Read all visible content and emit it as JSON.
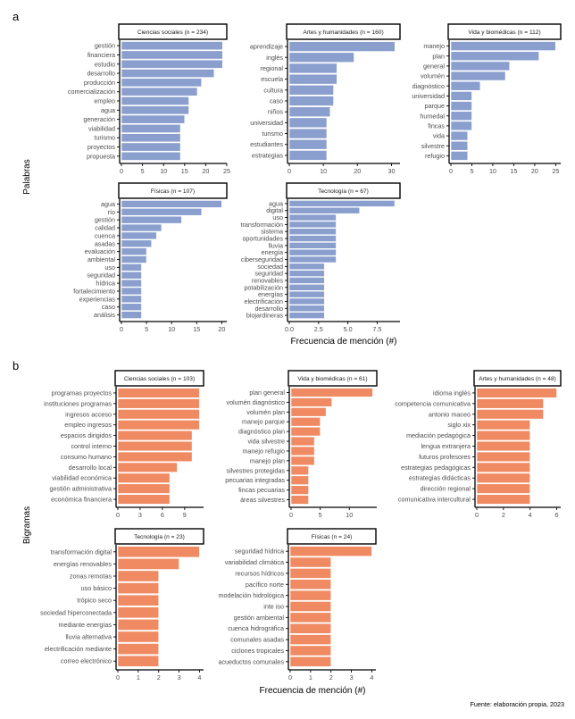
{
  "figure": {
    "tag_a": "a",
    "tag_b": "b",
    "ylabel_a": "Palabras",
    "ylabel_b": "Bigramas",
    "xlabel": "Frecuencia de mención (#)",
    "source_note": "Fuente: elaboración propia, 2023",
    "colors": {
      "words": "#8a9fce",
      "bigrams": "#ef8a62",
      "bar_edge": "#ffffff",
      "strip_border": "#000000",
      "axis": "#000000"
    }
  },
  "chart_data": [
    {
      "type": "bar",
      "orientation": "horizontal",
      "group": "a",
      "series_name": "Palabras",
      "title": "Ciencias sociales (n = 234)",
      "categories": [
        "gestión",
        "financiera",
        "estudio",
        "desarrollo",
        "producción",
        "comercialización",
        "empleo",
        "agua",
        "generación",
        "viabilidad",
        "turismo",
        "proyectos",
        "propuesta"
      ],
      "values": [
        24,
        24,
        24,
        22,
        19,
        18,
        16,
        16,
        15,
        14,
        14,
        14,
        14
      ],
      "xlim": [
        0,
        25
      ],
      "xticks": [
        0,
        5,
        10,
        15,
        20,
        25
      ],
      "xtick_labels": [
        "0",
        "5",
        "10",
        "15",
        "20",
        "25"
      ],
      "xlabel": "",
      "ylabel": "Palabras",
      "grid": false
    },
    {
      "type": "bar",
      "orientation": "horizontal",
      "group": "a",
      "series_name": "Palabras",
      "title": "Artes y humanidades (n = 160)",
      "categories": [
        "aprendizaje",
        "inglés",
        "regional",
        "escuela",
        "cultura",
        "caso",
        "niños",
        "universidad",
        "turismo",
        "estudiantes",
        "estrategias"
      ],
      "values": [
        31,
        19,
        14,
        14,
        13,
        13,
        12,
        11,
        11,
        11,
        11
      ],
      "xlim": [
        0,
        32.5
      ],
      "xticks": [
        0,
        10,
        20,
        30
      ],
      "xtick_labels": [
        "0",
        "10",
        "20",
        "30"
      ],
      "xlabel": "",
      "ylabel": "",
      "grid": false
    },
    {
      "type": "bar",
      "orientation": "horizontal",
      "group": "a",
      "series_name": "Palabras",
      "title": "Vida y biomédicas (n = 112)",
      "categories": [
        "manejo",
        "plan",
        "general",
        "volumén",
        "diagnóstico",
        "universidad",
        "parque",
        "humedal",
        "fincas",
        "vida",
        "silvestre",
        "refugio"
      ],
      "values": [
        25,
        21,
        14,
        13,
        7,
        5,
        5,
        5,
        5,
        4,
        4,
        4
      ],
      "xlim": [
        0,
        26.2
      ],
      "xticks": [
        0,
        5,
        10,
        15,
        20,
        25
      ],
      "xtick_labels": [
        "0",
        "5",
        "10",
        "15",
        "20",
        "25"
      ],
      "xlabel": "",
      "ylabel": "",
      "grid": false
    },
    {
      "type": "bar",
      "orientation": "horizontal",
      "group": "a",
      "series_name": "Palabras",
      "title": "Físicas (n = 107)",
      "categories": [
        "agua",
        "río",
        "gestión",
        "calidad",
        "cuenca",
        "asadas",
        "evaluación",
        "ambiental",
        "uso",
        "seguridad",
        "hídrica",
        "fortalecimiento",
        "experiencias",
        "caso",
        "análisis"
      ],
      "values": [
        20,
        16,
        12,
        8,
        7,
        6,
        5,
        5,
        4,
        4,
        4,
        4,
        4,
        4,
        4
      ],
      "xlim": [
        0,
        21
      ],
      "xticks": [
        0,
        5,
        10,
        15,
        20
      ],
      "xtick_labels": [
        "0",
        "5",
        "10",
        "15",
        "20"
      ],
      "xlabel": "",
      "ylabel": "",
      "grid": false
    },
    {
      "type": "bar",
      "orientation": "horizontal",
      "group": "a",
      "series_name": "Palabras",
      "title": "Tecnología (n = 67)",
      "categories": [
        "agua",
        "digital",
        "uso",
        "transformación",
        "sistema",
        "oportunidades",
        "lluvia",
        "energía",
        "ciberseguridad",
        "sociedad",
        "seguridad",
        "renovables",
        "potabilización",
        "energías",
        "electrificación",
        "desarrollo",
        "biojardineras"
      ],
      "values": [
        9,
        6,
        4,
        4,
        4,
        4,
        4,
        4,
        4,
        3,
        3,
        3,
        3,
        3,
        3,
        3,
        3
      ],
      "xlim": [
        0,
        9.45
      ],
      "xticks": [
        0,
        2.5,
        5,
        7.5
      ],
      "xtick_labels": [
        "0.0",
        "2.5",
        "5.0",
        "7.5"
      ],
      "xlabel": "Frecuencia de mención (#)",
      "ylabel": "",
      "grid": false
    },
    {
      "type": "bar",
      "orientation": "horizontal",
      "group": "b",
      "series_name": "Bigramas",
      "title": "Ciencias sociales (n = 103)",
      "categories": [
        "programas proyectos",
        "instituciones programas",
        "ingresos acceso",
        "empleo ingresos",
        "espacios dirigidos",
        "control interno",
        "consumo humano",
        "desarrollo local",
        "viabilidad económica",
        "gestión administrativa",
        "económica financiera"
      ],
      "values": [
        11,
        11,
        11,
        11,
        10,
        10,
        10,
        8,
        7,
        7,
        7
      ],
      "xlim": [
        0,
        11.55
      ],
      "xticks": [
        0,
        3,
        6,
        9
      ],
      "xtick_labels": [
        "0",
        "3",
        "6",
        "9"
      ],
      "xlabel": "",
      "ylabel": "Bigramas",
      "grid": false
    },
    {
      "type": "bar",
      "orientation": "horizontal",
      "group": "b",
      "series_name": "Bigramas",
      "title": "Vida y biomédicas (n = 61)",
      "categories": [
        "plan general",
        "volumén diagnóstico",
        "volumén plan",
        "manejo parque",
        "diagnóstico plan",
        "vida silvestre",
        "manejo refugio",
        "manejo plan",
        "silvestres protegidas",
        "pecuarias integradas",
        "fincas pecuarias",
        "áreas silvestres"
      ],
      "values": [
        14,
        7,
        6,
        5,
        5,
        4,
        4,
        4,
        3,
        3,
        3,
        3
      ],
      "xlim": [
        0,
        14.7
      ],
      "xticks": [
        0,
        5,
        10
      ],
      "xtick_labels": [
        "0",
        "5",
        "10"
      ],
      "xlabel": "",
      "ylabel": "",
      "grid": false
    },
    {
      "type": "bar",
      "orientation": "horizontal",
      "group": "b",
      "series_name": "Bigramas",
      "title": "Artes y humanidades (n = 48)",
      "categories": [
        "idioma inglés",
        "competencia comunicativa",
        "antonio maceo",
        "siglo xix",
        "mediación pedagógica",
        "lengua extranjera",
        "futuros profesores",
        "estrategias pedagógicas",
        "estrategias didácticas",
        "dirección regional",
        "comunicativa intercultural"
      ],
      "values": [
        6,
        5,
        5,
        4,
        4,
        4,
        4,
        4,
        4,
        4,
        4
      ],
      "xlim": [
        0,
        6.3
      ],
      "xticks": [
        0,
        2,
        4,
        6
      ],
      "xtick_labels": [
        "0",
        "2",
        "4",
        "6"
      ],
      "xlabel": "",
      "ylabel": "",
      "grid": false
    },
    {
      "type": "bar",
      "orientation": "horizontal",
      "group": "b",
      "series_name": "Bigramas",
      "title": "Tecnología (n = 23)",
      "categories": [
        "transformación digital",
        "energías renovables",
        "zonas remotas",
        "uso básico",
        "trópico seco",
        "sociedad hiperconectada",
        "mediante energías",
        "lluvia alternativa",
        "electrificación mediante",
        "correo electrónico"
      ],
      "values": [
        4,
        3,
        2,
        2,
        2,
        2,
        2,
        2,
        2,
        2
      ],
      "xlim": [
        0,
        4.2
      ],
      "xticks": [
        0,
        1,
        2,
        3,
        4
      ],
      "xtick_labels": [
        "0",
        "1",
        "2",
        "3",
        "4"
      ],
      "xlabel": "",
      "ylabel": "",
      "grid": false
    },
    {
      "type": "bar",
      "orientation": "horizontal",
      "group": "b",
      "series_name": "Bigramas",
      "title": "Físicas (n = 24)",
      "categories": [
        "seguridad hídrica",
        "variabilidad climática",
        "recursos hídricos",
        "pacífico norte",
        "modelación hidrológica",
        "inte iso",
        "gestión ambiental",
        "cuenca hidrográfica",
        "comunales asadas",
        "ciclones tropicales",
        "acueductos comunales"
      ],
      "values": [
        4,
        2,
        2,
        2,
        2,
        2,
        2,
        2,
        2,
        2,
        2
      ],
      "xlim": [
        0,
        4.2
      ],
      "xticks": [
        0,
        1,
        2,
        3,
        4
      ],
      "xtick_labels": [
        "0",
        "1",
        "2",
        "3",
        "4"
      ],
      "xlabel": "Frecuencia de mención (#)",
      "ylabel": "",
      "grid": false
    }
  ]
}
